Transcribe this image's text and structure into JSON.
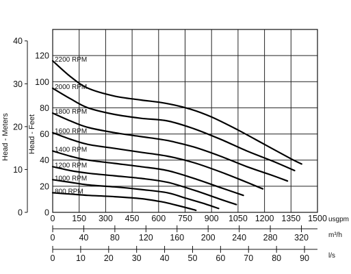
{
  "chart_data": {
    "type": "line",
    "title": "",
    "xlabel": "",
    "ylabel_left_outer": "Head - Meters",
    "ylabel_left_inner": "Head - Feet",
    "x_unit_label": "usgpm",
    "xlim": [
      0,
      1500
    ],
    "ylim_feet": [
      0,
      140
    ],
    "ylim_meters": [
      0,
      40
    ],
    "grid": true,
    "x_ticks": [
      "0",
      "150",
      "300",
      "450",
      "600",
      "750",
      "900",
      "1050",
      "1200",
      "1350",
      "1500"
    ],
    "y_ticks_feet": [
      "0",
      "20",
      "40",
      "60",
      "80",
      "100",
      "120"
    ],
    "y_ticks_meters": [
      "0",
      "10",
      "20",
      "30",
      "40"
    ],
    "secondary_axes": [
      {
        "unit": "m³/h",
        "ticks": [
          "0",
          "40",
          "80",
          "120",
          "160",
          "200",
          "240",
          "280",
          "320"
        ]
      },
      {
        "unit": "l/s",
        "ticks": [
          "0",
          "10",
          "20",
          "30",
          "40",
          "50",
          "60",
          "70",
          "80",
          "90"
        ]
      }
    ],
    "series": [
      {
        "name": "2200 RPM",
        "x": [
          0,
          100,
          200,
          350,
          500,
          640,
          780,
          900,
          1050,
          1200,
          1350,
          1410
        ],
        "y": [
          116,
          104,
          95,
          89,
          86,
          83.5,
          79,
          73,
          63,
          52,
          41,
          37
        ]
      },
      {
        "name": "2000 RPM",
        "x": [
          0,
          100,
          200,
          350,
          500,
          650,
          800,
          950,
          1100,
          1250,
          1370
        ],
        "y": [
          95,
          87,
          80,
          75,
          72,
          70,
          64,
          56,
          47,
          39,
          32
        ]
      },
      {
        "name": "1800 RPM",
        "x": [
          0,
          100,
          200,
          350,
          500,
          650,
          800,
          950,
          1100,
          1250,
          1330
        ],
        "y": [
          76,
          70,
          65,
          61,
          58,
          55,
          50,
          43,
          35,
          28,
          24
        ]
      },
      {
        "name": "1600 RPM",
        "x": [
          0,
          100,
          200,
          350,
          500,
          650,
          800,
          950,
          1100,
          1190
        ],
        "y": [
          61,
          56,
          52,
          49,
          46,
          43,
          38,
          31,
          23,
          18
        ]
      },
      {
        "name": "1400 RPM",
        "x": [
          0,
          100,
          200,
          350,
          500,
          650,
          800,
          950,
          1080
        ],
        "y": [
          47,
          43,
          40,
          37.5,
          35,
          32,
          26,
          19,
          13
        ]
      },
      {
        "name": "1200 RPM",
        "x": [
          0,
          100,
          200,
          350,
          500,
          650,
          800,
          950,
          1040
        ],
        "y": [
          35,
          32,
          30,
          28,
          26,
          23,
          17,
          10,
          6
        ]
      },
      {
        "name": "1000 RPM",
        "x": [
          0,
          100,
          200,
          350,
          500,
          650,
          750,
          850,
          940
        ],
        "y": [
          25,
          23,
          21,
          19.5,
          17.5,
          15,
          11,
          7,
          3
        ]
      },
      {
        "name": "800 RPM",
        "x": [
          0,
          100,
          200,
          350,
          500,
          620,
          700,
          800,
          810
        ],
        "y": [
          15,
          14,
          13,
          12,
          10.5,
          8,
          5.5,
          2,
          1.5
        ]
      }
    ]
  }
}
